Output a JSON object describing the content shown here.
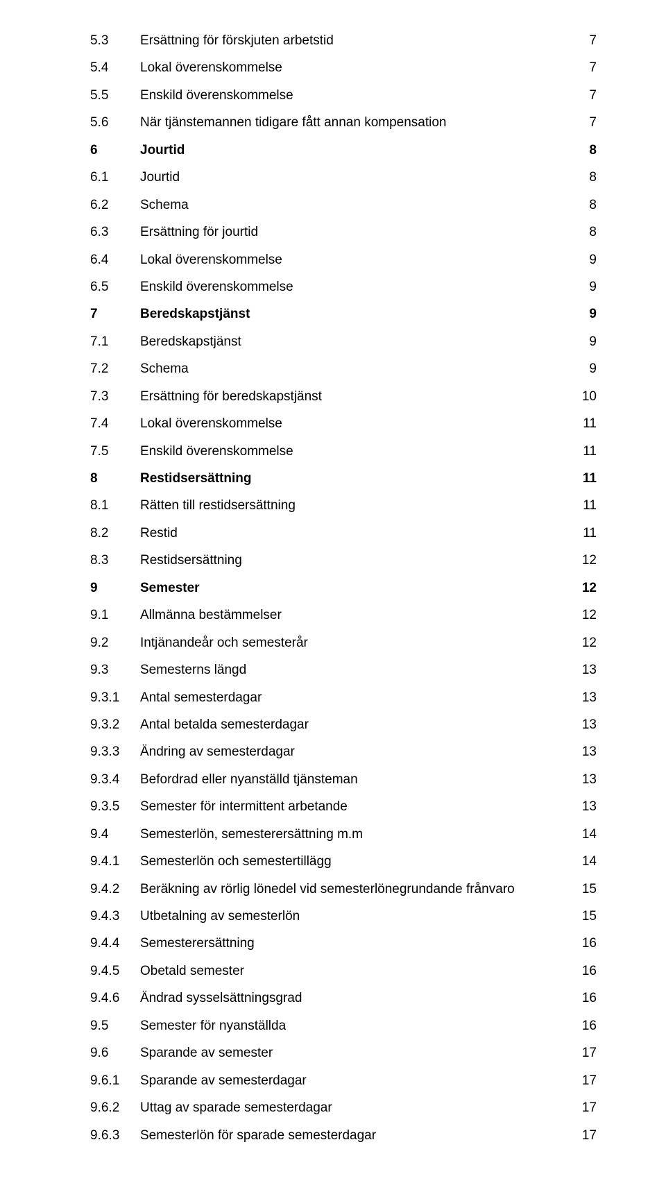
{
  "toc": [
    {
      "num": "5.3",
      "title": "Ersättning för förskjuten arbetstid",
      "page": "7",
      "bold": false
    },
    {
      "num": "5.4",
      "title": "Lokal överenskommelse",
      "page": "7",
      "bold": false
    },
    {
      "num": "5.5",
      "title": "Enskild överenskommelse",
      "page": "7",
      "bold": false
    },
    {
      "num": "5.6",
      "title": "När tjänstemannen tidigare fått annan kompensation",
      "page": "7",
      "bold": false
    },
    {
      "num": "6",
      "title": "Jourtid",
      "page": "8",
      "bold": true
    },
    {
      "num": "6.1",
      "title": "Jourtid",
      "page": "8",
      "bold": false
    },
    {
      "num": "6.2",
      "title": "Schema",
      "page": "8",
      "bold": false
    },
    {
      "num": "6.3",
      "title": "Ersättning för jourtid",
      "page": "8",
      "bold": false
    },
    {
      "num": "6.4",
      "title": "Lokal överenskommelse",
      "page": "9",
      "bold": false
    },
    {
      "num": "6.5",
      "title": "Enskild överenskommelse",
      "page": "9",
      "bold": false
    },
    {
      "num": "7",
      "title": "Beredskapstjänst",
      "page": "9",
      "bold": true
    },
    {
      "num": "7.1",
      "title": "Beredskapstjänst",
      "page": "9",
      "bold": false
    },
    {
      "num": "7.2",
      "title": "Schema",
      "page": "9",
      "bold": false
    },
    {
      "num": "7.3",
      "title": "Ersättning för beredskapstjänst",
      "page": "10",
      "bold": false
    },
    {
      "num": "7.4",
      "title": "Lokal överenskommelse",
      "page": "11",
      "bold": false
    },
    {
      "num": "7.5",
      "title": "Enskild överenskommelse",
      "page": "11",
      "bold": false
    },
    {
      "num": "8",
      "title": "Restidsersättning",
      "page": "11",
      "bold": true
    },
    {
      "num": "8.1",
      "title": "Rätten till restidsersättning",
      "page": "11",
      "bold": false
    },
    {
      "num": "8.2",
      "title": "Restid",
      "page": "11",
      "bold": false
    },
    {
      "num": "8.3",
      "title": "Restidsersättning",
      "page": "12",
      "bold": false
    },
    {
      "num": "9",
      "title": "Semester",
      "page": "12",
      "bold": true
    },
    {
      "num": "9.1",
      "title": "Allmänna bestämmelser",
      "page": "12",
      "bold": false
    },
    {
      "num": "9.2",
      "title": "Intjänandeår och semesterår",
      "page": "12",
      "bold": false
    },
    {
      "num": "9.3",
      "title": "Semesterns längd",
      "page": "13",
      "bold": false
    },
    {
      "num": "9.3.1",
      "title": "Antal semesterdagar",
      "page": "13",
      "bold": false
    },
    {
      "num": "9.3.2",
      "title": "Antal betalda semesterdagar",
      "page": "13",
      "bold": false
    },
    {
      "num": "9.3.3",
      "title": "Ändring av semesterdagar",
      "page": "13",
      "bold": false
    },
    {
      "num": "9.3.4",
      "title": "Befordrad eller nyanställd tjänsteman",
      "page": "13",
      "bold": false
    },
    {
      "num": "9.3.5",
      "title": "Semester för intermittent arbetande",
      "page": "13",
      "bold": false
    },
    {
      "num": "9.4",
      "title": "Semesterlön, semesterersättning m.m",
      "page": "14",
      "bold": false
    },
    {
      "num": "9.4.1",
      "title": "Semesterlön och semestertillägg",
      "page": "14",
      "bold": false
    },
    {
      "num": "9.4.2",
      "title": "Beräkning av rörlig lönedel vid semesterlönegrundande frånvaro",
      "page": "15",
      "bold": false
    },
    {
      "num": "9.4.3",
      "title": "Utbetalning av semesterlön",
      "page": "15",
      "bold": false
    },
    {
      "num": "9.4.4",
      "title": "Semesterersättning",
      "page": "16",
      "bold": false
    },
    {
      "num": "9.4.5",
      "title": "Obetald semester",
      "page": "16",
      "bold": false
    },
    {
      "num": "9.4.6",
      "title": "Ändrad sysselsättningsgrad",
      "page": "16",
      "bold": false
    },
    {
      "num": "9.5",
      "title": "Semester för nyanställda",
      "page": "16",
      "bold": false
    },
    {
      "num": "9.6",
      "title": "Sparande av semester",
      "page": "17",
      "bold": false
    },
    {
      "num": "9.6.1",
      "title": "Sparande av semesterdagar",
      "page": "17",
      "bold": false
    },
    {
      "num": "9.6.2",
      "title": "Uttag av sparade semesterdagar",
      "page": "17",
      "bold": false
    },
    {
      "num": "9.6.3",
      "title": "Semesterlön för sparade semesterdagar",
      "page": "17",
      "bold": false
    }
  ]
}
